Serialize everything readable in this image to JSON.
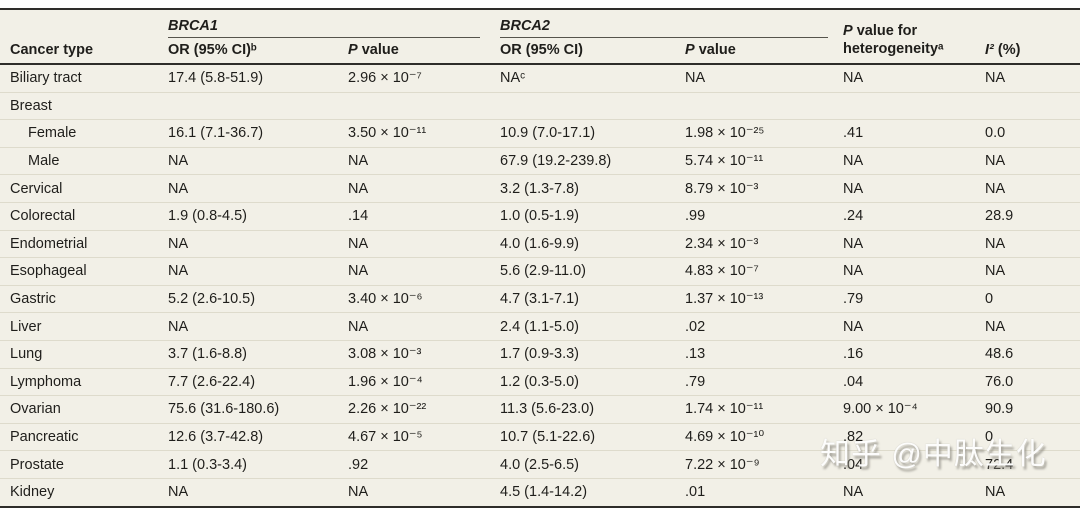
{
  "colors": {
    "table_background": "#f2f0e7",
    "rule_dark": "#2e2d2a",
    "row_separator": "#dedbcc",
    "text": "#1f1e1b",
    "watermark_text": "#ffffff"
  },
  "table": {
    "header": {
      "cancer_type": "Cancer type",
      "brca1": "BRCA1",
      "brca2": "BRCA2",
      "or_ci_b": "OR (95% CI)ᵇ",
      "or_ci": "OR (95% CI)",
      "p_italic": "P",
      "p_rest": " value",
      "het_p_italic": "P",
      "het_line1_rest": " value for",
      "het_line2": "heterogeneityᵃ",
      "i2_italic": "I²",
      "i2_rest": " (%)"
    },
    "rows": [
      {
        "label": "Biliary tract",
        "brca1_or": "17.4 (5.8-51.9)",
        "brca1_p": "2.96 × 10⁻⁷",
        "brca2_or": "NAᶜ",
        "brca2_p": "NA",
        "het_p": "NA",
        "i2": "NA"
      },
      {
        "label": "Breast",
        "brca1_or": "",
        "brca1_p": "",
        "brca2_or": "",
        "brca2_p": "",
        "het_p": "",
        "i2": ""
      },
      {
        "label": "Female",
        "brca1_or": "16.1 (7.1-36.7)",
        "brca1_p": "3.50 × 10⁻¹¹",
        "brca2_or": "10.9 (7.0-17.1)",
        "brca2_p": "1.98 × 10⁻²⁵",
        "het_p": ".41",
        "i2": "0.0"
      },
      {
        "label": "Male",
        "brca1_or": "NA",
        "brca1_p": "NA",
        "brca2_or": "67.9 (19.2-239.8)",
        "brca2_p": "5.74 × 10⁻¹¹",
        "het_p": "NA",
        "i2": "NA"
      },
      {
        "label": "Cervical",
        "brca1_or": "NA",
        "brca1_p": "NA",
        "brca2_or": "3.2 (1.3-7.8)",
        "brca2_p": "8.79 × 10⁻³",
        "het_p": "NA",
        "i2": "NA"
      },
      {
        "label": "Colorectal",
        "brca1_or": "1.9 (0.8-4.5)",
        "brca1_p": ".14",
        "brca2_or": "1.0 (0.5-1.9)",
        "brca2_p": ".99",
        "het_p": ".24",
        "i2": "28.9"
      },
      {
        "label": "Endometrial",
        "brca1_or": "NA",
        "brca1_p": "NA",
        "brca2_or": "4.0 (1.6-9.9)",
        "brca2_p": "2.34 × 10⁻³",
        "het_p": "NA",
        "i2": "NA"
      },
      {
        "label": "Esophageal",
        "brca1_or": "NA",
        "brca1_p": "NA",
        "brca2_or": "5.6 (2.9-11.0)",
        "brca2_p": "4.83 × 10⁻⁷",
        "het_p": "NA",
        "i2": "NA"
      },
      {
        "label": "Gastric",
        "brca1_or": "5.2 (2.6-10.5)",
        "brca1_p": "3.40 × 10⁻⁶",
        "brca2_or": "4.7 (3.1-7.1)",
        "brca2_p": "1.37 × 10⁻¹³",
        "het_p": ".79",
        "i2": "0"
      },
      {
        "label": "Liver",
        "brca1_or": "NA",
        "brca1_p": "NA",
        "brca2_or": "2.4 (1.1-5.0)",
        "brca2_p": ".02",
        "het_p": "NA",
        "i2": "NA"
      },
      {
        "label": "Lung",
        "brca1_or": "3.7 (1.6-8.8)",
        "brca1_p": "3.08 × 10⁻³",
        "brca2_or": "1.7 (0.9-3.3)",
        "brca2_p": ".13",
        "het_p": ".16",
        "i2": "48.6"
      },
      {
        "label": "Lymphoma",
        "brca1_or": "7.7 (2.6-22.4)",
        "brca1_p": "1.96 × 10⁻⁴",
        "brca2_or": "1.2 (0.3-5.0)",
        "brca2_p": ".79",
        "het_p": ".04",
        "i2": "76.0"
      },
      {
        "label": "Ovarian",
        "brca1_or": "75.6 (31.6-180.6)",
        "brca1_p": "2.26 × 10⁻²²",
        "brca2_or": "11.3 (5.6-23.0)",
        "brca2_p": "1.74 × 10⁻¹¹",
        "het_p": "9.00 × 10⁻⁴",
        "i2": "90.9"
      },
      {
        "label": "Pancreatic",
        "brca1_or": "12.6 (3.7-42.8)",
        "brca1_p": "4.67 × 10⁻⁵",
        "brca2_or": "10.7 (5.1-22.6)",
        "brca2_p": "4.69 × 10⁻¹⁰",
        "het_p": ".82",
        "i2": "0"
      },
      {
        "label": "Prostate",
        "brca1_or": "1.1 (0.3-3.4)",
        "brca1_p": ".92",
        "brca2_or": "4.0 (2.5-6.5)",
        "brca2_p": "7.22 × 10⁻⁹",
        "het_p": ".04",
        "i2": "72.4"
      },
      {
        "label": "Kidney",
        "brca1_or": "NA",
        "brca1_p": "NA",
        "brca2_or": "4.5 (1.4-14.2)",
        "brca2_p": ".01",
        "het_p": "NA",
        "i2": "NA"
      }
    ]
  },
  "watermark": {
    "text": "知乎 @中肽生化"
  }
}
